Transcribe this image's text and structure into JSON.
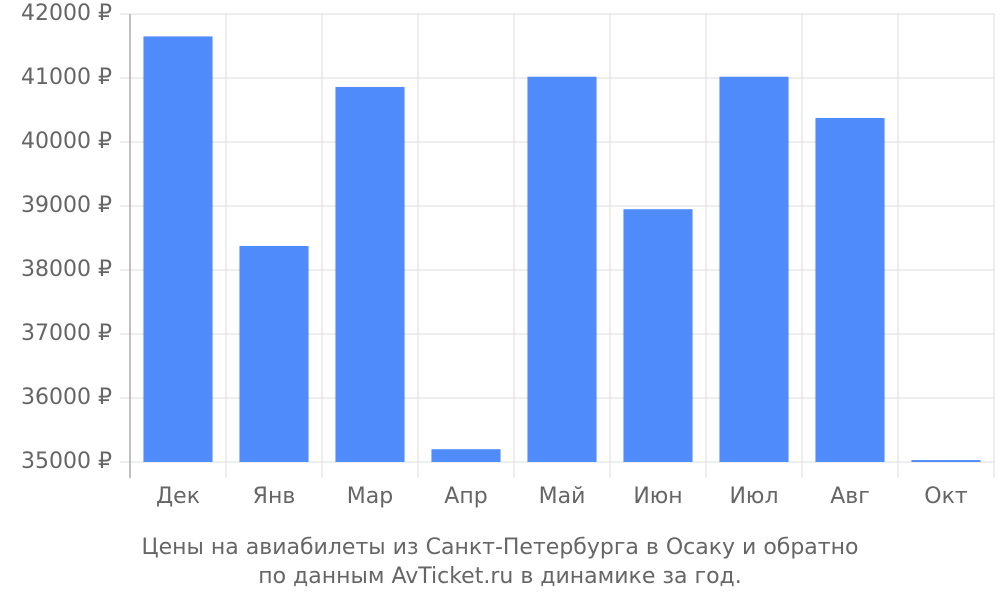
{
  "chart_data": {
    "type": "bar",
    "caption": [
      "Цены на авиабилеты из Санкт-Петербурга в Осаку и обратно",
      "по данным AvTicket.ru в динамике за год."
    ],
    "categories": [
      "Дек",
      "Янв",
      "Мар",
      "Апр",
      "Май",
      "Июн",
      "Июл",
      "Авг",
      "Окт"
    ],
    "values": [
      41650,
      38375,
      40860,
      35200,
      41020,
      38950,
      41020,
      40375,
      35030
    ],
    "color": "#4f8bfb",
    "ylim": [
      35000,
      42000
    ],
    "yticks": [
      {
        "value": 35000,
        "label": "35000 ₽"
      },
      {
        "value": 36000,
        "label": "36000 ₽"
      },
      {
        "value": 37000,
        "label": "37000 ₽"
      },
      {
        "value": 38000,
        "label": "38000 ₽"
      },
      {
        "value": 39000,
        "label": "39000 ₽"
      },
      {
        "value": 40000,
        "label": "40000 ₽"
      },
      {
        "value": 41000,
        "label": "41000 ₽"
      },
      {
        "value": 42000,
        "label": "42000 ₽"
      }
    ],
    "grid": true
  }
}
